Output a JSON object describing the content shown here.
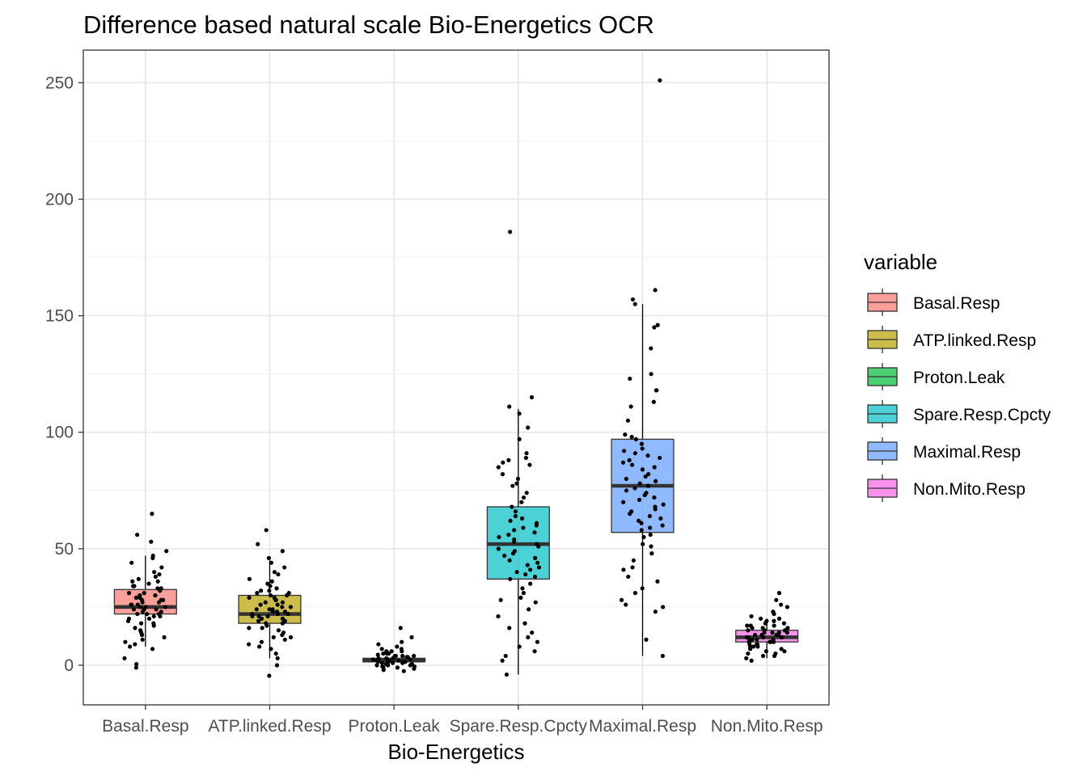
{
  "chart_data": {
    "type": "box",
    "title": "Difference based natural scale Bio-Energetics OCR",
    "xlabel": "Bio-Energetics",
    "ylabel": "",
    "ylim": [
      -17,
      264
    ],
    "yticks": [
      0,
      50,
      100,
      150,
      200,
      250
    ],
    "grid": true,
    "legend": {
      "title": "variable",
      "position": "right"
    },
    "categories": [
      "Basal.Resp",
      "ATP.linked.Resp",
      "Proton.Leak",
      "Spare.Resp.Cpcty",
      "Maximal.Resp",
      "Non.Mito.Resp"
    ],
    "series": [
      {
        "name": "Basal.Resp",
        "color": "#F8766D",
        "box": {
          "whisker_low": 8,
          "q1": 22,
          "median": 25,
          "q3": 32.5,
          "whisker_high": 47
        },
        "points": [
          65,
          56,
          53,
          49,
          47,
          46,
          44,
          42,
          40,
          39,
          38,
          37,
          36,
          36,
          35,
          34,
          34,
          33,
          33,
          32,
          31,
          31,
          30,
          30,
          29,
          29,
          28,
          28,
          28,
          27,
          27,
          26,
          26,
          26,
          25,
          25,
          25,
          24,
          24,
          24,
          23,
          23,
          22,
          22,
          22,
          21,
          21,
          20,
          20,
          19,
          18,
          18,
          17,
          16,
          15,
          14,
          13,
          12,
          11,
          10,
          9,
          8,
          7,
          3,
          0.5,
          -1
        ]
      },
      {
        "name": "ATP.linked.Resp",
        "color": "#B79F00",
        "box": {
          "whisker_low": 3,
          "q1": 18,
          "median": 22,
          "q3": 30,
          "whisker_high": 45
        },
        "points": [
          58,
          52,
          49,
          46,
          44,
          42,
          40,
          39,
          37,
          36,
          35,
          34,
          33,
          32,
          32,
          31,
          31,
          30,
          30,
          29,
          29,
          28,
          28,
          27,
          27,
          26,
          26,
          25,
          25,
          24,
          24,
          24,
          23,
          23,
          23,
          22,
          22,
          22,
          21,
          21,
          21,
          20,
          20,
          19,
          19,
          18,
          18,
          17,
          16,
          16,
          15,
          14,
          13,
          12,
          12,
          11,
          10,
          9,
          8,
          7,
          5,
          3,
          0,
          -4.5
        ]
      },
      {
        "name": "Proton.Leak",
        "color": "#00BA38",
        "box": {
          "whisker_low": 0.5,
          "q1": 1.5,
          "median": 2,
          "q3": 3,
          "whisker_high": 4
        },
        "points": [
          16,
          12,
          10,
          9,
          8,
          7,
          7,
          6,
          6,
          6,
          5,
          5,
          5,
          5,
          4.5,
          4,
          4,
          4,
          4,
          3.5,
          3.5,
          3,
          3,
          3,
          3,
          2.5,
          2.5,
          2.5,
          2,
          2,
          2,
          2,
          2,
          1.5,
          1.5,
          1.5,
          1,
          1,
          1,
          1,
          0.5,
          0.5,
          0,
          0,
          0,
          -0.5,
          -0.5,
          -1,
          -1,
          -1.5,
          -2,
          -2.5
        ]
      },
      {
        "name": "Spare.Resp.Cpcty",
        "color": "#00BFC4",
        "box": {
          "whisker_low": -4,
          "q1": 37,
          "median": 52,
          "q3": 68,
          "whisker_high": 110
        },
        "points": [
          186,
          115,
          111,
          108,
          102,
          97,
          91,
          89,
          88,
          87,
          86,
          85,
          82,
          80,
          78,
          77,
          74,
          72,
          70,
          68,
          66,
          64,
          63,
          62,
          61,
          60,
          59,
          58,
          57,
          56,
          55,
          54,
          53,
          52,
          51,
          50,
          49,
          48,
          47,
          46,
          45,
          44,
          43,
          42,
          41,
          40,
          39,
          38,
          37,
          35,
          33,
          31,
          29,
          28,
          27,
          24,
          21,
          18,
          16,
          14,
          12,
          10,
          8,
          6,
          4,
          2,
          -4
        ]
      },
      {
        "name": "Maximal.Resp",
        "color": "#619CFF",
        "box": {
          "whisker_low": 4,
          "q1": 57,
          "median": 77,
          "q3": 97,
          "whisker_high": 155
        },
        "points": [
          251,
          161,
          157,
          155,
          146,
          145,
          136,
          125,
          123,
          118,
          118,
          113,
          111,
          105,
          99,
          98,
          97,
          95,
          93,
          92,
          91,
          90,
          89,
          88,
          87,
          86,
          85,
          84,
          82,
          81,
          80,
          79,
          78,
          77,
          77,
          76,
          75,
          74,
          73,
          72,
          71,
          70,
          69,
          68,
          67,
          66,
          65,
          64,
          63,
          62,
          61,
          60,
          59,
          58,
          56,
          55,
          52,
          51,
          48,
          45,
          42,
          41,
          38,
          36,
          33,
          31,
          28,
          26,
          25,
          23,
          11,
          4
        ]
      },
      {
        "name": "Non.Mito.Resp",
        "color": "#F564E3",
        "box": {
          "whisker_low": 3,
          "q1": 10,
          "median": 12,
          "q3": 15,
          "whisker_high": 20
        },
        "points": [
          31,
          28,
          26,
          25,
          23,
          22,
          21,
          20,
          20,
          19,
          19,
          18,
          18,
          17,
          17,
          17,
          16,
          16,
          16,
          15,
          15,
          15,
          14,
          14,
          14,
          14,
          13,
          13,
          13,
          13,
          12,
          12,
          12,
          12,
          12,
          11,
          11,
          11,
          11,
          10,
          10,
          10,
          10,
          9,
          9,
          9,
          8,
          8,
          8,
          7,
          7,
          6,
          6,
          5,
          5,
          4,
          4,
          3,
          2
        ]
      }
    ]
  }
}
